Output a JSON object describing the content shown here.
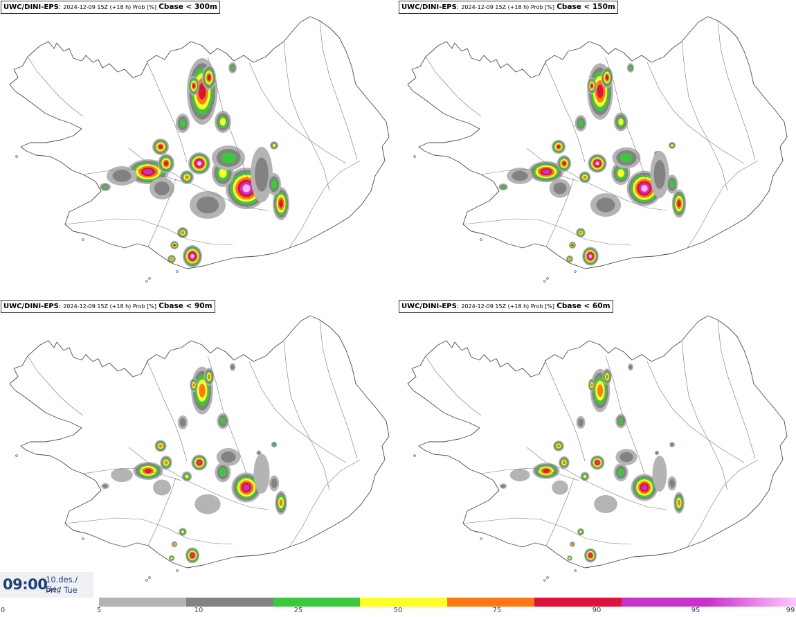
{
  "panels": [
    {
      "model": "UWC/DINI-EPS",
      "meta": "2024-12-09 15Z (+18 h) Prob [%]",
      "threshold": "Cbase < 300m"
    },
    {
      "model": "UWC/DINI-EPS",
      "meta": "2024-12-09 15Z (+18 h) Prob [%]",
      "threshold": "Cbase < 150m"
    },
    {
      "model": "UWC/DINI-EPS",
      "meta": "2024-12-09 15Z (+18 h) Prob [%]",
      "threshold": "Cbase < 90m"
    },
    {
      "model": "UWC/DINI-EPS",
      "meta": "2024-12-09 15Z (+18 h) Prob [%]",
      "threshold": "Cbase < 60m"
    }
  ],
  "time": {
    "clock": "09:00",
    "date_line1": "10.des./ Dec",
    "date_line2": "Þri./ Tue"
  },
  "legend": {
    "ticks": [
      "0",
      "5",
      "10",
      "25",
      "50",
      "75",
      "90",
      "95",
      "99"
    ],
    "colors": [
      "#b4b4b4",
      "#828282",
      "#3cc83c",
      "#ffff28",
      "#ff7814",
      "#dc143c",
      "#c832c8",
      "#ffc8ff"
    ]
  },
  "colors": {
    "coast": "#555555",
    "low": "#b4b4b4",
    "mid": "#828282",
    "green": "#3cc83c",
    "yellow": "#ffff28",
    "orange": "#ff7814",
    "red": "#dc143c",
    "magenta": "#c832c8",
    "pink": "#ffb4ff"
  }
}
